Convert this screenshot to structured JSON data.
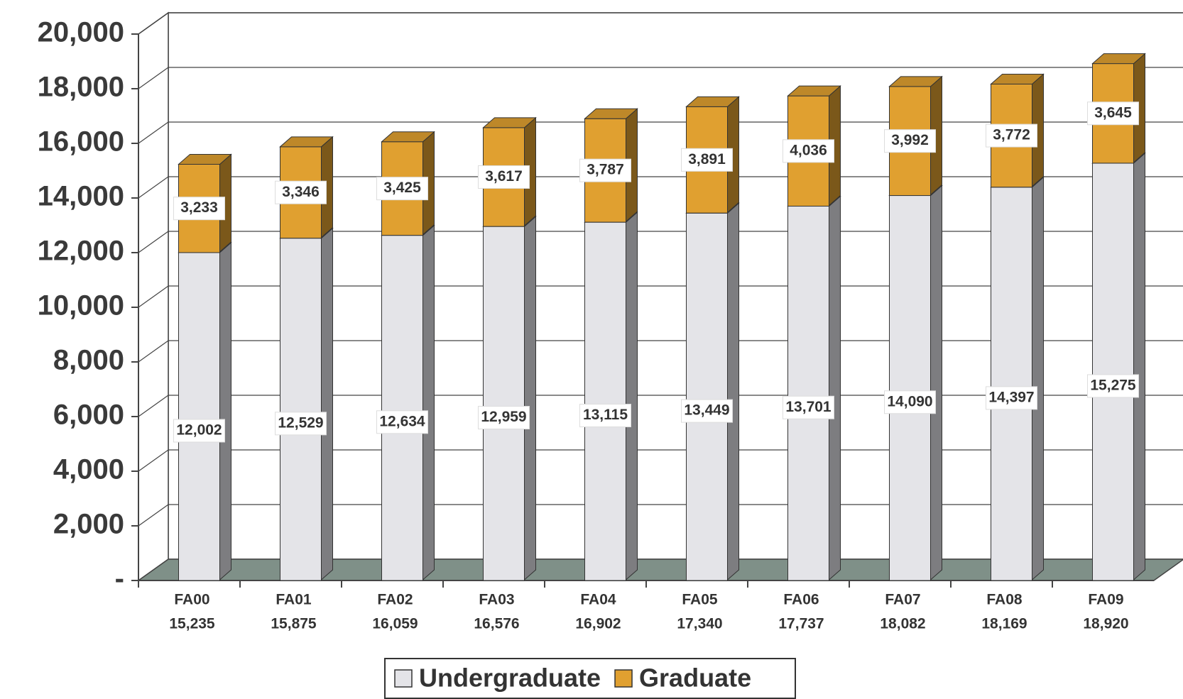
{
  "chart_data": {
    "type": "bar3d_stacked",
    "categories": [
      "FA00",
      "FA01",
      "FA02",
      "FA03",
      "FA04",
      "FA05",
      "FA06",
      "FA07",
      "FA08",
      "FA09"
    ],
    "total_labels": [
      "15,235",
      "15,875",
      "16,059",
      "16,576",
      "16,902",
      "17,340",
      "17,737",
      "18,082",
      "18,169",
      "18,920"
    ],
    "series": [
      {
        "name": "Undergraduate",
        "color": "#e4e4e8",
        "values": [
          12002,
          12529,
          12634,
          12959,
          13115,
          13449,
          13701,
          14090,
          14397,
          15275
        ],
        "value_labels": [
          "12,002",
          "12,529",
          "12,634",
          "12,959",
          "13,115",
          "13,449",
          "13,701",
          "14,090",
          "14,397",
          "15,275"
        ]
      },
      {
        "name": "Graduate",
        "color": "#e0a030",
        "values": [
          3233,
          3346,
          3425,
          3617,
          3787,
          3891,
          4036,
          3992,
          3772,
          3645
        ],
        "value_labels": [
          "3,233",
          "3,346",
          "3,425",
          "3,617",
          "3,787",
          "3,891",
          "4,036",
          "3,992",
          "3,772",
          "3,645"
        ]
      }
    ],
    "ylim": [
      0,
      20000
    ],
    "yticks": [
      {
        "value": 0,
        "label": "-"
      },
      {
        "value": 2000,
        "label": "2,000"
      },
      {
        "value": 4000,
        "label": "4,000"
      },
      {
        "value": 6000,
        "label": "6,000"
      },
      {
        "value": 8000,
        "label": "8,000"
      },
      {
        "value": 10000,
        "label": "10,000"
      },
      {
        "value": 12000,
        "label": "12,000"
      },
      {
        "value": 14000,
        "label": "14,000"
      },
      {
        "value": 16000,
        "label": "16,000"
      },
      {
        "value": 18000,
        "label": "18,000"
      },
      {
        "value": 20000,
        "label": "20,000"
      }
    ],
    "grid": true
  }
}
